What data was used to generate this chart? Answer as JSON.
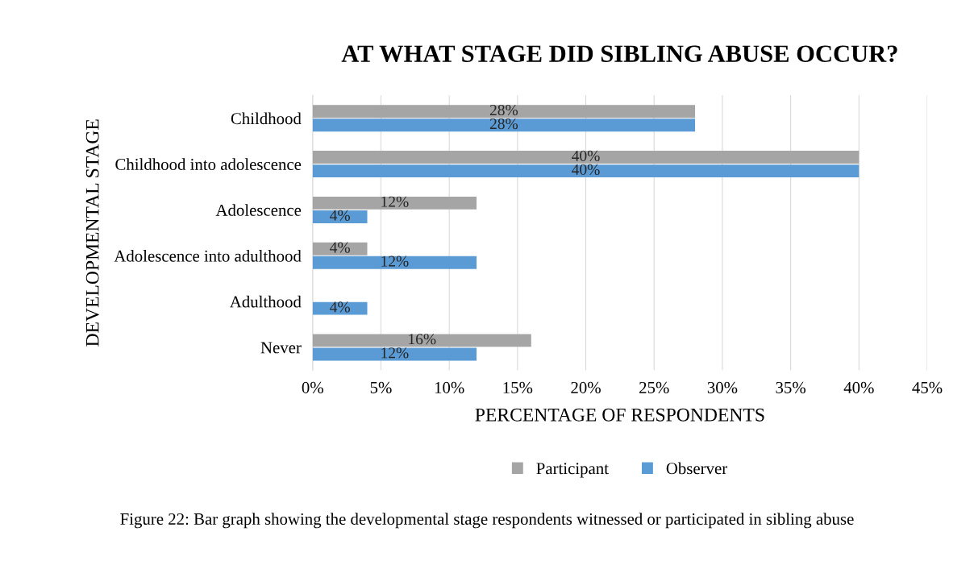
{
  "chart_data": {
    "type": "bar",
    "orientation": "horizontal",
    "title": "AT WHAT STAGE DID SIBLING ABUSE OCCUR?",
    "xlabel": "PERCENTAGE OF RESPONDENTS",
    "ylabel": "DEVELOPMENTAL STAGE",
    "categories": [
      "Childhood",
      "Childhood into adolescence",
      "Adolescence",
      "Adolescence into adulthood",
      "Adulthood",
      "Never"
    ],
    "series": [
      {
        "name": "Participant",
        "color": "#a5a5a5",
        "values": [
          28,
          40,
          12,
          4,
          null,
          16
        ],
        "value_labels": [
          "28%",
          "40%",
          "12%",
          "4%",
          null,
          "16%"
        ]
      },
      {
        "name": "Observer",
        "color": "#5b9bd5",
        "values": [
          28,
          40,
          4,
          12,
          4,
          12
        ],
        "value_labels": [
          "28%",
          "40%",
          "4%",
          "12%",
          "4%",
          "12%"
        ]
      }
    ],
    "xlim": [
      0,
      45
    ],
    "xticks": [
      {
        "value": 0,
        "label": "0%"
      },
      {
        "value": 5,
        "label": "5%"
      },
      {
        "value": 10,
        "label": "10%"
      },
      {
        "value": 15,
        "label": "15%"
      },
      {
        "value": 20,
        "label": "20%"
      },
      {
        "value": 25,
        "label": "25%"
      },
      {
        "value": 30,
        "label": "30%"
      },
      {
        "value": 35,
        "label": "35%"
      },
      {
        "value": 40,
        "label": "40%"
      },
      {
        "value": 45,
        "label": "45%"
      }
    ],
    "grid": "x",
    "legend": "bottom",
    "annotations": [
      "Figure 22: Bar graph showing the developmental stage respondents witnessed or participated in sibling abuse"
    ]
  }
}
